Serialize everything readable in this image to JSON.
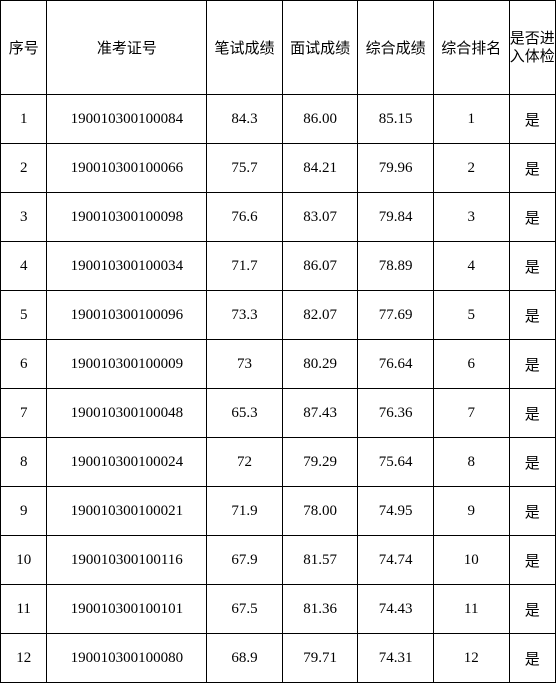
{
  "table": {
    "headers": {
      "seq": "序号",
      "exam_id": "准考证号",
      "written": "笔试成绩",
      "interview": "面试成绩",
      "total": "综合成绩",
      "rank": "综合排名",
      "pass": "是否进入体检"
    },
    "rows": [
      {
        "seq": "1",
        "exam_id": "190010300100084",
        "written": "84.3",
        "interview": "86.00",
        "total": "85.15",
        "rank": "1",
        "pass": "是"
      },
      {
        "seq": "2",
        "exam_id": "190010300100066",
        "written": "75.7",
        "interview": "84.21",
        "total": "79.96",
        "rank": "2",
        "pass": "是"
      },
      {
        "seq": "3",
        "exam_id": "190010300100098",
        "written": "76.6",
        "interview": "83.07",
        "total": "79.84",
        "rank": "3",
        "pass": "是"
      },
      {
        "seq": "4",
        "exam_id": "190010300100034",
        "written": "71.7",
        "interview": "86.07",
        "total": "78.89",
        "rank": "4",
        "pass": "是"
      },
      {
        "seq": "5",
        "exam_id": "190010300100096",
        "written": "73.3",
        "interview": "82.07",
        "total": "77.69",
        "rank": "5",
        "pass": "是"
      },
      {
        "seq": "6",
        "exam_id": "190010300100009",
        "written": "73",
        "interview": "80.29",
        "total": "76.64",
        "rank": "6",
        "pass": "是"
      },
      {
        "seq": "7",
        "exam_id": "190010300100048",
        "written": "65.3",
        "interview": "87.43",
        "total": "76.36",
        "rank": "7",
        "pass": "是"
      },
      {
        "seq": "8",
        "exam_id": "190010300100024",
        "written": "72",
        "interview": "79.29",
        "total": "75.64",
        "rank": "8",
        "pass": "是"
      },
      {
        "seq": "9",
        "exam_id": "190010300100021",
        "written": "71.9",
        "interview": "78.00",
        "total": "74.95",
        "rank": "9",
        "pass": "是"
      },
      {
        "seq": "10",
        "exam_id": "190010300100116",
        "written": "67.9",
        "interview": "81.57",
        "total": "74.74",
        "rank": "10",
        "pass": "是"
      },
      {
        "seq": "11",
        "exam_id": "190010300100101",
        "written": "67.5",
        "interview": "81.36",
        "total": "74.43",
        "rank": "11",
        "pass": "是"
      },
      {
        "seq": "12",
        "exam_id": "190010300100080",
        "written": "68.9",
        "interview": "79.71",
        "total": "74.31",
        "rank": "12",
        "pass": "是"
      }
    ]
  }
}
